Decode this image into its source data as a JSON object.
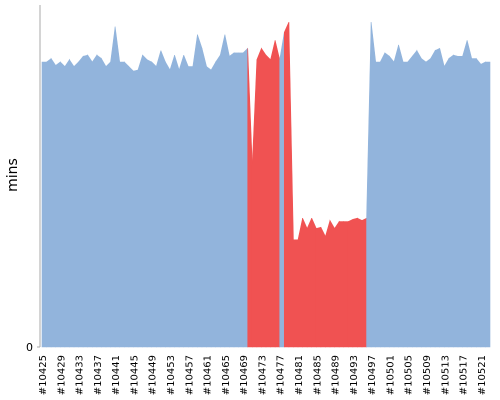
{
  "chart_data": {
    "type": "area",
    "ylabel": "mins",
    "categories": [
      "#10425",
      null,
      null,
      null,
      "#10429",
      null,
      null,
      null,
      "#10433",
      null,
      null,
      null,
      "#10437",
      null,
      null,
      null,
      "#10441",
      null,
      null,
      null,
      "#10445",
      null,
      null,
      null,
      "#10449",
      null,
      null,
      null,
      "#10453",
      null,
      null,
      null,
      "#10457",
      null,
      null,
      null,
      "#10461",
      null,
      null,
      null,
      "#10465",
      null,
      null,
      null,
      "#10469",
      null,
      null,
      null,
      "#10473",
      null,
      null,
      null,
      "#10477",
      null,
      null,
      null,
      "#10481",
      null,
      null,
      null,
      "#10485",
      null,
      null,
      null,
      "#10489",
      null,
      null,
      null,
      "#10493",
      null,
      null,
      null,
      "#10497",
      null,
      null,
      null,
      "#10501",
      null,
      null,
      null,
      "#10505",
      null,
      null,
      null,
      "#10509",
      null,
      null,
      null,
      "#10513",
      null,
      null,
      null,
      "#10517",
      null,
      null,
      null,
      "#10521",
      null,
      null
    ],
    "values": [
      25.0,
      25.0,
      25.3,
      24.7,
      25.0,
      24.6,
      25.2,
      24.6,
      25.0,
      25.5,
      25.6,
      25.0,
      25.6,
      25.3,
      24.6,
      25.0,
      28.1,
      25.0,
      25.0,
      24.6,
      24.2,
      24.3,
      25.6,
      25.2,
      25.0,
      24.6,
      26.0,
      25.0,
      24.3,
      25.6,
      24.3,
      25.6,
      24.6,
      24.6,
      27.4,
      26.2,
      24.6,
      24.3,
      25.0,
      25.6,
      27.4,
      25.5,
      25.8,
      25.8,
      25.8,
      26.2,
      16.0,
      25.2,
      26.2,
      25.6,
      25.2,
      26.9,
      25.2,
      27.6,
      28.5,
      9.4,
      9.4,
      11.3,
      10.4,
      11.3,
      10.4,
      10.5,
      9.7,
      11.1,
      10.4,
      11.0,
      11.0,
      11.0,
      11.2,
      11.3,
      11.1,
      11.3,
      28.5,
      25.0,
      25.0,
      25.8,
      25.5,
      25.0,
      26.5,
      25.0,
      25.0,
      25.5,
      26.0,
      25.3,
      25.0,
      25.3,
      26.0,
      26.2,
      24.6,
      25.3,
      25.6,
      25.5,
      25.5,
      26.9,
      25.3,
      25.3,
      24.8,
      25.0,
      25.0
    ],
    "colors": [
      "#92b4dc",
      "#92b4dc",
      "#92b4dc",
      "#92b4dc",
      "#92b4dc",
      "#92b4dc",
      "#92b4dc",
      "#92b4dc",
      "#92b4dc",
      "#92b4dc",
      "#92b4dc",
      "#92b4dc",
      "#92b4dc",
      "#92b4dc",
      "#92b4dc",
      "#92b4dc",
      "#92b4dc",
      "#92b4dc",
      "#92b4dc",
      "#92b4dc",
      "#92b4dc",
      "#92b4dc",
      "#92b4dc",
      "#92b4dc",
      "#92b4dc",
      "#92b4dc",
      "#92b4dc",
      "#92b4dc",
      "#92b4dc",
      "#92b4dc",
      "#92b4dc",
      "#92b4dc",
      "#92b4dc",
      "#92b4dc",
      "#92b4dc",
      "#92b4dc",
      "#92b4dc",
      "#92b4dc",
      "#92b4dc",
      "#92b4dc",
      "#92b4dc",
      "#92b4dc",
      "#92b4dc",
      "#92b4dc",
      "#92b4dc",
      "#92b4dc",
      "#f05252",
      "#f05252",
      "#f05252",
      "#f05252",
      "#f05252",
      "#f05252",
      "#f05252",
      "#92b4dc",
      "#f05252",
      "#f05252",
      "#f05252",
      "#f05252",
      "#f05252",
      "#f05252",
      "#f05252",
      "#f05252",
      "#f05252",
      "#f05252",
      "#f05252",
      "#f05252",
      "#f05252",
      "#f05252",
      "#f05252",
      "#f05252",
      "#f05252",
      "#f05252",
      "#92b4dc",
      "#92b4dc",
      "#92b4dc",
      "#92b4dc",
      "#92b4dc",
      "#92b4dc",
      "#92b4dc",
      "#92b4dc",
      "#92b4dc",
      "#92b4dc",
      "#92b4dc",
      "#92b4dc",
      "#92b4dc",
      "#92b4dc",
      "#92b4dc",
      "#92b4dc",
      "#92b4dc",
      "#92b4dc",
      "#92b4dc",
      "#92b4dc",
      "#92b4dc",
      "#92b4dc",
      "#92b4dc",
      "#92b4dc",
      "#92b4dc",
      "#92b4dc",
      "#92b4dc"
    ],
    "ylim": [
      0,
      30
    ],
    "yticks": [
      0
    ],
    "grid": false
  }
}
